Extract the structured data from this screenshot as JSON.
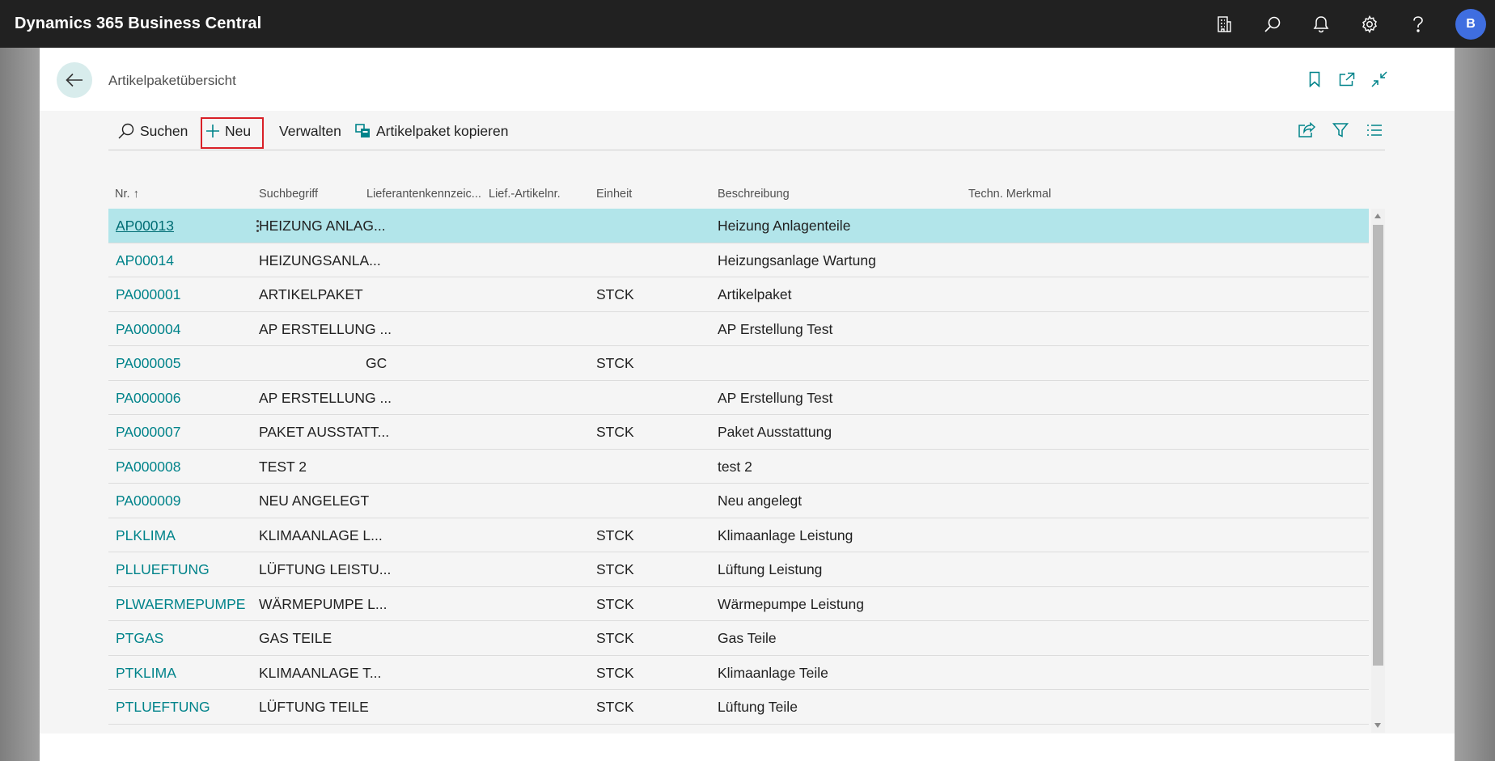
{
  "app": {
    "title": "Dynamics 365 Business Central",
    "avatar_initial": "B"
  },
  "topbar_icons": [
    "company-icon",
    "search-icon",
    "bell-icon",
    "gear-icon",
    "help-icon"
  ],
  "page": {
    "title": "Artikelpaketübersicht"
  },
  "actions": {
    "search_label": "Suchen",
    "new_label": "Neu",
    "manage_label": "Verwalten",
    "copy_label": "Artikelpaket kopieren"
  },
  "columns": {
    "nr": "Nr.",
    "sort_indicator": "↑",
    "suchbegriff": "Suchbegriff",
    "lieferant": "Lieferantenkennzeic...",
    "lief_artikelnr": "Lief.-Artikelnr.",
    "einheit": "Einheit",
    "beschreibung": "Beschreibung",
    "techn": "Techn. Merkmal"
  },
  "rows": [
    {
      "nr": "AP00013",
      "suchbegriff": "HEIZUNG ANLAG...",
      "lieferant": "",
      "einheit": "",
      "beschreibung": "Heizung Anlagenteile",
      "selected": true
    },
    {
      "nr": "AP00014",
      "suchbegriff": "HEIZUNGSANLA...",
      "lieferant": "",
      "einheit": "",
      "beschreibung": "Heizungsanlage Wartung"
    },
    {
      "nr": "PA000001",
      "suchbegriff": "ARTIKELPAKET",
      "lieferant": "",
      "einheit": "STCK",
      "beschreibung": "Artikelpaket"
    },
    {
      "nr": "PA000004",
      "suchbegriff": "AP ERSTELLUNG ...",
      "lieferant": "",
      "einheit": "",
      "beschreibung": "AP Erstellung Test"
    },
    {
      "nr": "PA000005",
      "suchbegriff": "",
      "lieferant": "GC",
      "einheit": "STCK",
      "beschreibung": ""
    },
    {
      "nr": "PA000006",
      "suchbegriff": "AP ERSTELLUNG ...",
      "lieferant": "",
      "einheit": "",
      "beschreibung": "AP Erstellung Test"
    },
    {
      "nr": "PA000007",
      "suchbegriff": "PAKET AUSSTATT...",
      "lieferant": "",
      "einheit": "STCK",
      "beschreibung": "Paket Ausstattung"
    },
    {
      "nr": "PA000008",
      "suchbegriff": "TEST 2",
      "lieferant": "",
      "einheit": "",
      "beschreibung": "test 2"
    },
    {
      "nr": "PA000009",
      "suchbegriff": "NEU ANGELEGT",
      "lieferant": "",
      "einheit": "",
      "beschreibung": "Neu angelegt"
    },
    {
      "nr": "PLKLIMA",
      "suchbegriff": "KLIMAANLAGE L...",
      "lieferant": "",
      "einheit": "STCK",
      "beschreibung": "Klimaanlage Leistung"
    },
    {
      "nr": "PLLUEFTUNG",
      "suchbegriff": "LÜFTUNG LEISTU...",
      "lieferant": "",
      "einheit": "STCK",
      "beschreibung": "Lüftung Leistung"
    },
    {
      "nr": "PLWAERMEPUMPE",
      "suchbegriff": "WÄRMEPUMPE L...",
      "lieferant": "",
      "einheit": "STCK",
      "beschreibung": "Wärmepumpe Leistung"
    },
    {
      "nr": "PTGAS",
      "suchbegriff": "GAS TEILE",
      "lieferant": "",
      "einheit": "STCK",
      "beschreibung": "Gas Teile"
    },
    {
      "nr": "PTKLIMA",
      "suchbegriff": "KLIMAANLAGE T...",
      "lieferant": "",
      "einheit": "STCK",
      "beschreibung": "Klimaanlage Teile"
    },
    {
      "nr": "PTLUEFTUNG",
      "suchbegriff": "LÜFTUNG TEILE",
      "lieferant": "",
      "einheit": "STCK",
      "beschreibung": "Lüftung Teile"
    }
  ],
  "colors": {
    "topbar": "#212121",
    "accent_link": "#00838a",
    "selected_row": "#b2e5ea",
    "highlight_border": "#d92027",
    "avatar": "#3f6ee0"
  }
}
